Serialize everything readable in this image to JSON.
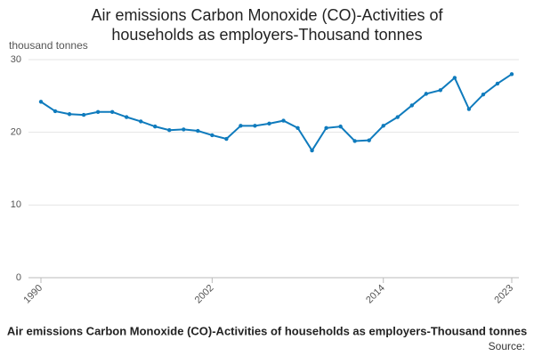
{
  "chart_data": {
    "type": "line",
    "title": "Air emissions Carbon Monoxide (CO)-Activities of households as employers-Thousand tonnes",
    "y_label": "thousand tonnes",
    "source": "Source:",
    "x": [
      1990,
      1991,
      1992,
      1993,
      1994,
      1995,
      1996,
      1997,
      1998,
      1999,
      2000,
      2001,
      2002,
      2003,
      2004,
      2005,
      2006,
      2007,
      2008,
      2009,
      2010,
      2011,
      2012,
      2013,
      2014,
      2015,
      2016,
      2017,
      2018,
      2019,
      2020,
      2021,
      2022,
      2023
    ],
    "series": [
      {
        "color": "#0f7bbd",
        "values": [
          24.2,
          22.9,
          22.5,
          22.4,
          22.8,
          22.8,
          22.1,
          21.5,
          20.8,
          20.3,
          20.4,
          20.2,
          19.6,
          19.1,
          20.9,
          20.9,
          21.2,
          21.6,
          20.6,
          17.5,
          20.6,
          20.8,
          18.8,
          18.9,
          20.9,
          22.1,
          23.7,
          25.3,
          25.8,
          27.5,
          23.2,
          25.2,
          26.7,
          28.0
        ]
      }
    ],
    "xlim": [
      1990,
      2023
    ],
    "xticks": [
      1990,
      2002,
      2014,
      2023
    ],
    "ylim": [
      0,
      30
    ],
    "yticks": [
      0,
      10,
      20,
      30
    ],
    "grid": true
  }
}
